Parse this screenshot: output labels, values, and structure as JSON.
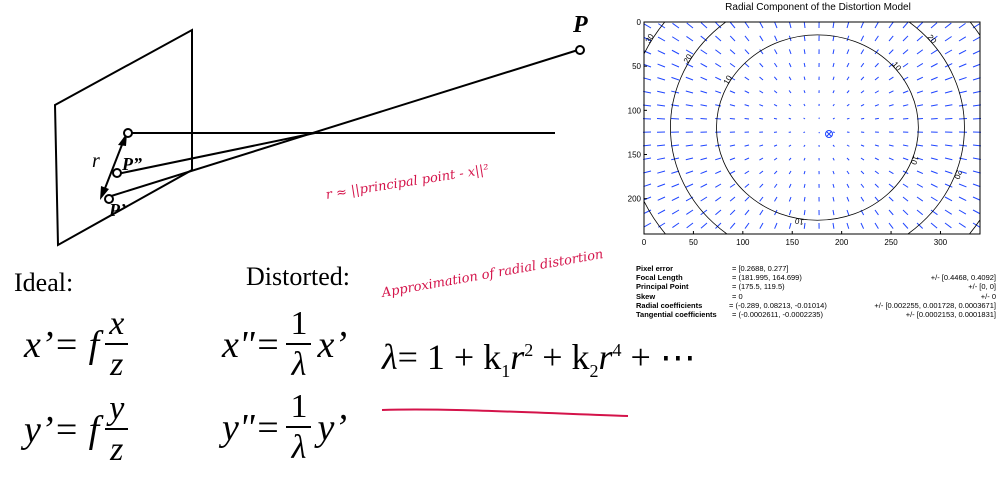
{
  "diagram": {
    "point_P": "P",
    "point_P_double_prime": "P”",
    "point_P_prime": "P’",
    "radius_r": "r",
    "annotation_r": "r ≈ ||principal point - x||²"
  },
  "ideal": {
    "title": "Ideal:",
    "x_lhs": "x’= f",
    "x_num": "x",
    "x_den": "z",
    "y_lhs": "y’= f",
    "y_num": "y",
    "y_den": "z"
  },
  "distorted": {
    "title": "Distorted:",
    "x_lhs": "x\"=",
    "x_rhs": "x’",
    "y_lhs": "y\"=",
    "y_rhs": "y’",
    "frac_num": "1",
    "frac_den": "λ"
  },
  "lambda_eq": {
    "annotation": "Approximation of radial distortion",
    "lhs": "λ",
    "rest": "= 1 + k",
    "sub1": "1",
    "r1": "r",
    "exp1": "2",
    "plus2": " + k",
    "sub2": "2",
    "r2": "r",
    "exp2": "4",
    "tail": " + ⋯"
  },
  "plot": {
    "title": "Radial Component of the Distortion Model",
    "xticks": [
      "0",
      "50",
      "100",
      "150",
      "200",
      "250",
      "300"
    ],
    "yticks": [
      "0",
      "50",
      "100",
      "150",
      "200"
    ],
    "contour_labels": [
      "10",
      "20",
      "30",
      "40",
      "50",
      "60"
    ]
  },
  "chart_data": {
    "type": "contour",
    "title": "Radial Component of the Distortion Model",
    "xlim": [
      0,
      340
    ],
    "ylim": [
      0,
      240
    ],
    "y_inverted": true,
    "principal_point": [
      175.5,
      119.5
    ],
    "contour_levels": [
      10,
      20,
      30,
      40,
      50,
      60
    ],
    "vector_field": "radial arrows",
    "colors": {
      "arrows": "#1f45ff",
      "contours": "#000000",
      "principal_point": "#1f45ff"
    }
  },
  "calibration": [
    {
      "name": "Pixel error",
      "value": "= [0.2688, 0.277]",
      "err": ""
    },
    {
      "name": "Focal Length",
      "value": "= (181.995, 164.699)",
      "err": "+/- [0.4468, 0.4092]"
    },
    {
      "name": "Principal Point",
      "value": "= (175.5, 119.5)",
      "err": "+/- [0, 0]"
    },
    {
      "name": "Skew",
      "value": "= 0",
      "err": "+/- 0"
    },
    {
      "name": "Radial coefficients",
      "value": "= (-0.289, 0.08213, -0.01014)",
      "err": "+/- [0.002255, 0.001728, 0.0003671]"
    },
    {
      "name": "Tangential coefficients",
      "value": "= (-0.0002611, -0.0002235)",
      "err": "+/- [0.0002153, 0.0001831]"
    }
  ]
}
